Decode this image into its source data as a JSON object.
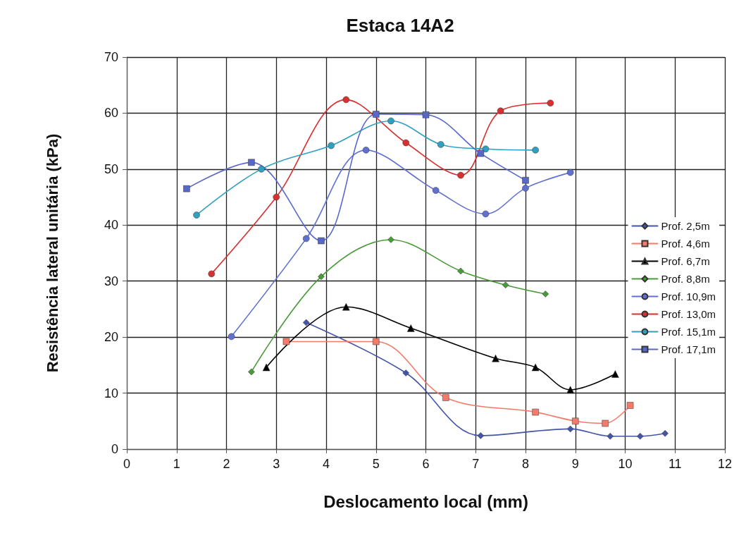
{
  "chart_data": {
    "type": "line",
    "title": "Estaca 14A2",
    "xlabel": "Deslocamento local (mm)",
    "ylabel": "Resistência lateral unitária (kPa)",
    "xlim": [
      0,
      12
    ],
    "xticks": [
      0,
      1,
      2,
      3,
      4,
      5,
      6,
      7,
      8,
      9,
      10,
      11,
      12
    ],
    "ylim": [
      0,
      70
    ],
    "yticks": [
      0,
      10,
      20,
      30,
      40,
      50,
      60,
      70
    ],
    "grid": true,
    "legend": "right",
    "series": [
      {
        "name": "Prof. 2,5m",
        "color": "#4455a8",
        "marker": "diamond",
        "x": [
          3.6,
          5.6,
          7.1,
          8.9,
          9.7,
          10.3,
          10.8
        ],
        "values": [
          22.6,
          13.6,
          2.4,
          3.6,
          2.3,
          2.3,
          2.8
        ]
      },
      {
        "name": "Prof. 4,6m",
        "color": "#f47a6a",
        "marker": "square",
        "x": [
          3.2,
          5.0,
          6.4,
          8.2,
          9.0,
          9.6,
          10.1
        ],
        "values": [
          19.2,
          19.2,
          9.2,
          6.6,
          5.0,
          4.6,
          7.8
        ]
      },
      {
        "name": "Prof. 6,7m",
        "color": "#000000",
        "marker": "triangle",
        "x": [
          2.8,
          4.4,
          5.7,
          7.4,
          8.2,
          8.9,
          9.8
        ],
        "values": [
          14.6,
          25.4,
          21.6,
          16.2,
          14.6,
          10.6,
          13.4
        ]
      },
      {
        "name": "Prof. 8,8m",
        "color": "#4a9a3a",
        "marker": "diamond",
        "x": [
          2.5,
          3.9,
          5.3,
          6.7,
          7.6,
          8.4
        ],
        "values": [
          13.8,
          30.8,
          37.4,
          31.8,
          29.3,
          27.7
        ]
      },
      {
        "name": "Prof. 10,9m",
        "color": "#6070d0",
        "marker": "circle",
        "x": [
          2.1,
          3.6,
          4.8,
          6.2,
          7.2,
          8.0,
          8.9
        ],
        "values": [
          20.1,
          37.6,
          53.4,
          46.2,
          42.0,
          46.6,
          49.4
        ]
      },
      {
        "name": "Prof. 13,0m",
        "color": "#d83030",
        "marker": "circle",
        "x": [
          1.7,
          3.0,
          4.4,
          5.6,
          6.7,
          7.5,
          8.5
        ],
        "values": [
          31.3,
          45.0,
          62.4,
          54.7,
          48.9,
          60.4,
          61.8
        ]
      },
      {
        "name": "Prof. 15,1m",
        "color": "#30a0c0",
        "marker": "circle",
        "x": [
          1.4,
          2.7,
          4.1,
          5.3,
          6.3,
          7.2,
          8.2
        ],
        "values": [
          41.8,
          50.0,
          54.2,
          58.6,
          54.4,
          53.6,
          53.4
        ]
      },
      {
        "name": "Prof. 17,1m",
        "color": "#5868c8",
        "marker": "square",
        "x": [
          1.2,
          2.5,
          3.9,
          5.0,
          6.0,
          7.1,
          8.0
        ],
        "values": [
          46.5,
          51.2,
          37.2,
          59.8,
          59.7,
          52.8,
          48.0
        ]
      }
    ]
  }
}
